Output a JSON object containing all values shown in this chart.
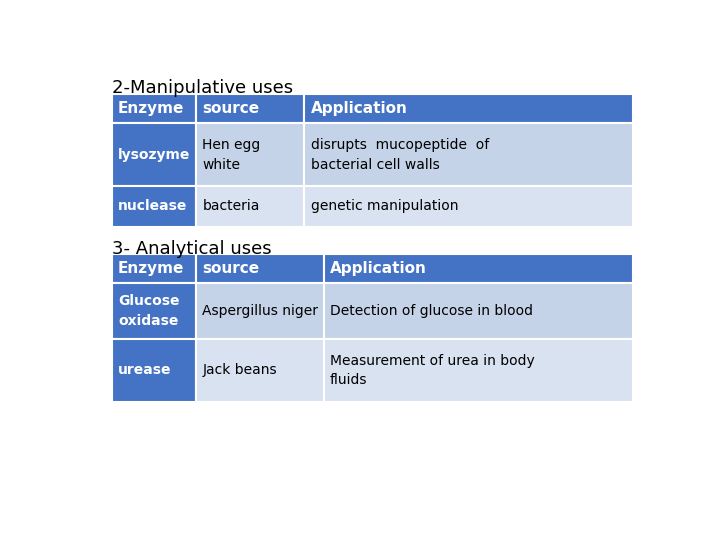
{
  "title1": "2-Manipulative uses",
  "title2": "3- Analytical uses",
  "table1_header": [
    "Enzyme",
    "source",
    "Application"
  ],
  "table1_rows": [
    [
      "lysozyme",
      "Hen egg\nwhite",
      "disrupts  mucopeptide  of\nbacterial cell walls"
    ],
    [
      "nuclease",
      "bacteria",
      "genetic manipulation"
    ]
  ],
  "table2_header": [
    "Enzyme",
    "source",
    "Application"
  ],
  "table2_rows": [
    [
      "Glucose\noxidase",
      "Aspergillus niger",
      "Detection of glucose in blood"
    ],
    [
      "urease",
      "Jack beans",
      "Measurement of urea in body\nfluids"
    ]
  ],
  "header_bg": "#4472C4",
  "header_text": "#FFFFFF",
  "row_odd_bg": "#C5D3E8",
  "row_even_bg": "#D9E2F0",
  "enzyme_col_bg": "#4472C4",
  "enzyme_col_text": "#FFFFFF",
  "body_text": "#000000",
  "title_text": "#000000",
  "bg_color": "#FFFFFF",
  "title_fontsize": 13,
  "header_fontsize": 11,
  "body_fontsize": 10
}
